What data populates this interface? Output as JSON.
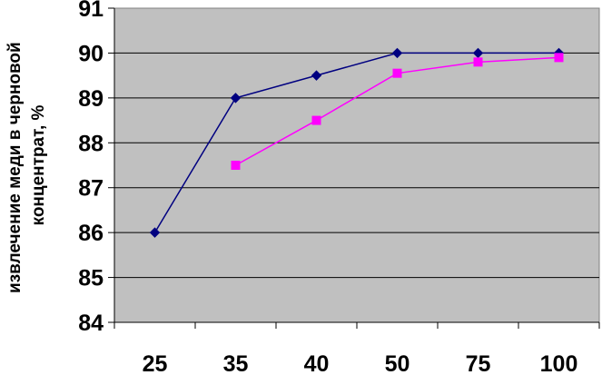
{
  "chart_data": {
    "type": "line",
    "title": "",
    "xlabel": "",
    "ylabel_lines": [
      "извлечение меди в черновой",
      "концентрат, %"
    ],
    "categories": [
      "25",
      "35",
      "40",
      "50",
      "75",
      "100"
    ],
    "ylim": [
      84,
      91
    ],
    "yticks": [
      84,
      85,
      86,
      87,
      88,
      89,
      90,
      91
    ],
    "grid": true,
    "plot_background": "#c0c0c0",
    "series": [
      {
        "color": "#000080",
        "marker": "diamond",
        "values": [
          86.0,
          89.0,
          89.5,
          90.0,
          90.0,
          90.0
        ]
      },
      {
        "color": "#ff00ff",
        "marker": "square",
        "values": [
          null,
          87.5,
          88.5,
          89.55,
          89.8,
          89.9
        ]
      }
    ]
  }
}
